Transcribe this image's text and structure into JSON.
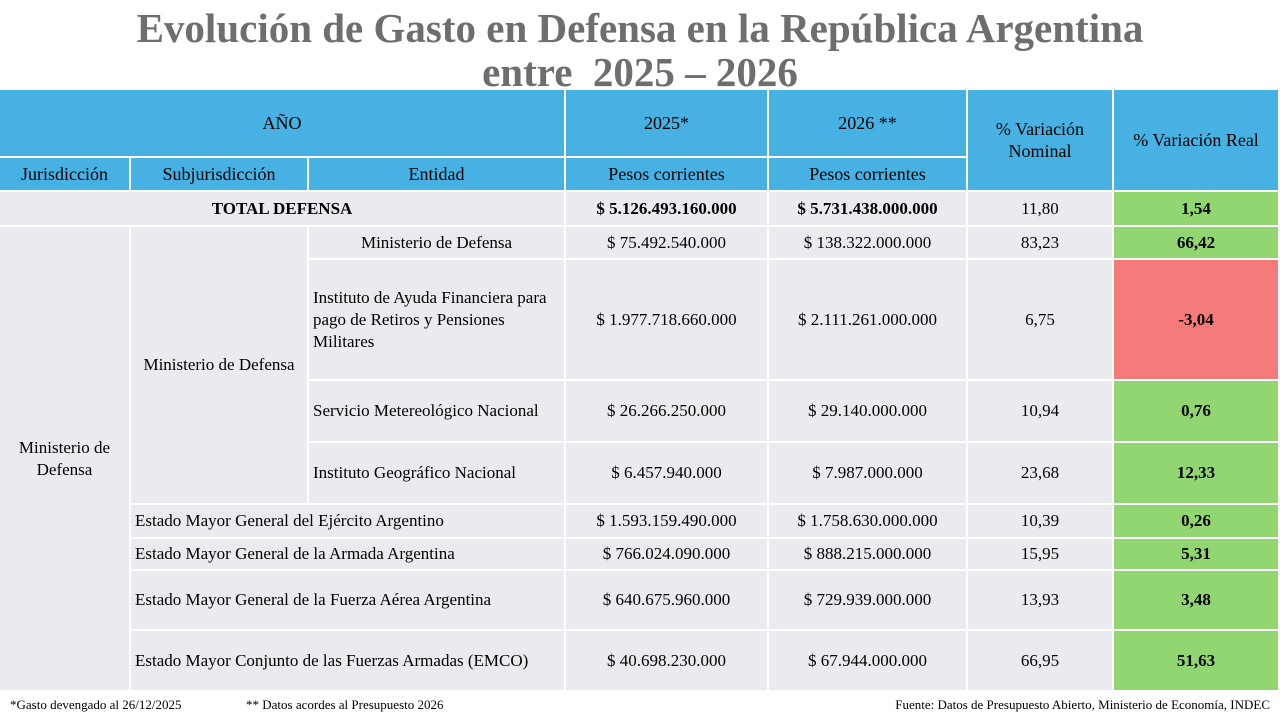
{
  "title": [
    "Evolución de Gasto en Defensa en la República Argentina",
    "entre  2025 – 2026"
  ],
  "table": {
    "header": {
      "year_label": "AÑO",
      "col_2025": "2025*",
      "col_2026": "2026 **",
      "nominal": "% Variación Nominal",
      "real": "% Variación Real",
      "jurisdiccion": "Jurisdicción",
      "subjurisdiccion": "Subjurisdicción",
      "entidad": "Entidad",
      "unit_2025": "Pesos corrientes",
      "unit_2026": "Pesos corrientes"
    },
    "total": {
      "label": "TOTAL DEFENSA",
      "v2025": "$ 5.126.493.160.000",
      "v2026": "$ 5.731.438.000.000",
      "nominal": "11,80",
      "real": "1,54"
    },
    "jurisdiccion": "Ministerio de Defensa",
    "subjurisdiccion": "Ministerio de Defensa",
    "ministerio_rows": [
      {
        "entidad": "Ministerio de Defensa",
        "v2025": "$ 75.492.540.000",
        "v2026": "$ 138.322.000.000",
        "nominal": "83,23",
        "real": "66,42"
      },
      {
        "entidad": "Instituto de Ayuda Financiera para pago de Retiros y Pensiones Militares",
        "v2025": "$ 1.977.718.660.000",
        "v2026": "$ 2.111.261.000.000",
        "nominal": "6,75",
        "real": "-3,04"
      },
      {
        "entidad": "Servicio Metereológico Nacional",
        "v2025": "$ 26.266.250.000",
        "v2026": "$ 29.140.000.000",
        "nominal": "10,94",
        "real": "0,76"
      },
      {
        "entidad": "Instituto Geográfico Nacional",
        "v2025": "$ 6.457.940.000",
        "v2026": "$ 7.987.000.000",
        "nominal": "23,68",
        "real": "12,33"
      }
    ],
    "estado_mayor_rows": [
      {
        "entidad": "Estado Mayor General del Ejército Argentino",
        "v2025": "$ 1.593.159.490.000",
        "v2026": "$ 1.758.630.000.000",
        "nominal": "10,39",
        "real": "0,26"
      },
      {
        "entidad": "Estado Mayor General de la Armada Argentina",
        "v2025": "$ 766.024.090.000",
        "v2026": "$ 888.215.000.000",
        "nominal": "15,95",
        "real": "5,31"
      },
      {
        "entidad": "Estado Mayor General de la Fuerza Aérea Argentina",
        "v2025": "$ 640.675.960.000",
        "v2026": "$ 729.939.000.000",
        "nominal": "13,93",
        "real": "3,48"
      },
      {
        "entidad": "Estado Mayor Conjunto de las Fuerzas Armadas (EMCO)",
        "v2025": "$ 40.698.230.000",
        "v2026": "$ 67.944.000.000",
        "nominal": "66,95",
        "real": "51,63"
      }
    ],
    "colors": {
      "positive": "#92d672",
      "negative": "#f57b7b"
    }
  },
  "footer": {
    "note_2025": "*Gasto devengado al 26/12/2025",
    "note_2026": "** Datos acordes al Presupuesto 2026",
    "source": "Fuente: Datos de Presupuesto Abierto, Ministerio de Economía, INDEC"
  }
}
